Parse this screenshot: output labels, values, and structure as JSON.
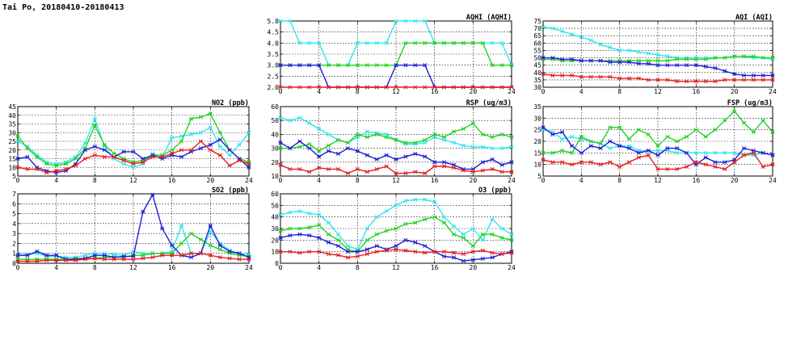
{
  "page_title": "Tai Po, 20180410-20180413",
  "colors": {
    "cyan": "#30e6f0",
    "green": "#22d222",
    "blue": "#1e1ed8",
    "red": "#e41e1e"
  },
  "chart_data": [
    {
      "id": "aqhi",
      "type": "line",
      "title": "AQHI (AQHI)",
      "xlabel": "",
      "ylabel": "",
      "xlim": [
        0,
        24
      ],
      "ylim": [
        2.0,
        5.0
      ],
      "xticks": [
        0,
        4,
        8,
        12,
        16,
        20,
        24
      ],
      "yticks": [
        2.0,
        2.5,
        3.0,
        3.5,
        4.0,
        4.5,
        5.0
      ],
      "grid": true,
      "x": [
        0,
        1,
        2,
        3,
        4,
        5,
        6,
        7,
        8,
        9,
        10,
        11,
        12,
        13,
        14,
        15,
        16,
        17,
        18,
        19,
        20,
        21,
        22,
        23,
        24
      ],
      "series": [
        {
          "color": "cyan",
          "values": [
            5,
            5,
            4,
            4,
            4,
            3,
            3,
            3,
            4,
            4,
            4,
            4,
            5,
            5,
            5,
            5,
            4,
            4,
            4,
            4,
            4,
            4,
            4,
            4,
            3
          ]
        },
        {
          "color": "green",
          "values": [
            3,
            3,
            3,
            3,
            3,
            3,
            3,
            3,
            3,
            3,
            3,
            3,
            3,
            4,
            4,
            4,
            4,
            4,
            4,
            4,
            4,
            4,
            3,
            3,
            3
          ]
        },
        {
          "color": "blue",
          "values": [
            3,
            3,
            3,
            3,
            3,
            2,
            2,
            2,
            2,
            2,
            2,
            2,
            3,
            3,
            3,
            3,
            2,
            2,
            2,
            2,
            2,
            2,
            2,
            2,
            2
          ]
        },
        {
          "color": "red",
          "values": [
            2,
            2,
            2,
            2,
            2,
            2,
            2,
            2,
            2,
            2,
            2,
            2,
            2,
            2,
            2,
            2,
            2,
            2,
            2,
            2,
            2,
            2,
            2,
            2,
            2
          ]
        }
      ]
    },
    {
      "id": "aqi",
      "type": "line",
      "title": "AQI (AQI)",
      "xlabel": "",
      "ylabel": "",
      "xlim": [
        0,
        24
      ],
      "ylim": [
        30,
        75
      ],
      "xticks": [
        0,
        4,
        8,
        12,
        16,
        20,
        24
      ],
      "yticks": [
        30,
        35,
        40,
        45,
        50,
        55,
        60,
        65,
        70,
        75
      ],
      "grid": true,
      "x": [
        0,
        1,
        2,
        3,
        4,
        5,
        6,
        7,
        8,
        9,
        10,
        11,
        12,
        13,
        14,
        15,
        16,
        17,
        18,
        19,
        20,
        21,
        22,
        23,
        24
      ],
      "series": [
        {
          "color": "cyan",
          "values": [
            71,
            70,
            68,
            66,
            64,
            62,
            59,
            57,
            55,
            55,
            54,
            53,
            52,
            51,
            50,
            50,
            50,
            50,
            50,
            50,
            51,
            51,
            50,
            50,
            49
          ]
        },
        {
          "color": "green",
          "values": [
            49,
            49,
            48,
            48,
            48,
            48,
            48,
            48,
            48,
            48,
            48,
            48,
            48,
            48,
            49,
            49,
            49,
            49,
            50,
            50,
            51,
            51,
            51,
            50,
            50
          ]
        },
        {
          "color": "blue",
          "values": [
            50,
            50,
            49,
            49,
            48,
            48,
            48,
            47,
            47,
            47,
            46,
            46,
            45,
            45,
            45,
            45,
            45,
            44,
            43,
            41,
            39,
            38,
            38,
            38,
            38
          ]
        },
        {
          "color": "red",
          "values": [
            39,
            38,
            38,
            38,
            37,
            37,
            37,
            37,
            36,
            36,
            36,
            35,
            35,
            35,
            34,
            34,
            34,
            34,
            34,
            35,
            35,
            35,
            35,
            35,
            35
          ]
        }
      ]
    },
    {
      "id": "no2",
      "type": "line",
      "title": "NO2 (ppb)",
      "xlabel": "",
      "ylabel": "",
      "xlim": [
        0,
        24
      ],
      "ylim": [
        5,
        45
      ],
      "xticks": [
        0,
        4,
        8,
        12,
        16,
        20,
        24
      ],
      "yticks": [
        5,
        10,
        15,
        20,
        25,
        30,
        35,
        40,
        45
      ],
      "grid": true,
      "x": [
        0,
        1,
        2,
        3,
        4,
        5,
        6,
        7,
        8,
        9,
        10,
        11,
        12,
        13,
        14,
        15,
        16,
        17,
        18,
        19,
        20,
        21,
        22,
        23,
        24
      ],
      "series": [
        {
          "color": "cyan",
          "values": [
            25,
            22,
            17,
            13,
            12,
            13,
            16,
            24,
            38,
            22,
            15,
            12,
            10,
            12,
            18,
            16,
            27,
            28,
            29,
            30,
            33,
            22,
            17,
            23,
            30
          ]
        },
        {
          "color": "green",
          "values": [
            28,
            21,
            16,
            12,
            11,
            12,
            15,
            21,
            34,
            23,
            18,
            15,
            13,
            14,
            17,
            17,
            20,
            25,
            38,
            39,
            41,
            30,
            20,
            15,
            13
          ]
        },
        {
          "color": "blue",
          "values": [
            15,
            16,
            10,
            8,
            7,
            8,
            12,
            20,
            22,
            20,
            16,
            19,
            19,
            15,
            17,
            15,
            17,
            16,
            19,
            21,
            23,
            26,
            20,
            15,
            10
          ]
        },
        {
          "color": "red",
          "values": [
            10,
            9,
            9,
            7,
            8,
            9,
            11,
            15,
            17,
            16,
            16,
            14,
            12,
            13,
            16,
            16,
            18,
            20,
            20,
            25,
            20,
            17,
            11,
            14,
            12
          ]
        }
      ]
    },
    {
      "id": "rsp",
      "type": "line",
      "title": "RSP (ug/m3)",
      "xlabel": "",
      "ylabel": "",
      "xlim": [
        0,
        24
      ],
      "ylim": [
        10,
        60
      ],
      "xticks": [
        0,
        4,
        8,
        12,
        16,
        20,
        24
      ],
      "yticks": [
        10,
        20,
        30,
        40,
        50,
        60
      ],
      "grid": true,
      "x": [
        0,
        1,
        2,
        3,
        4,
        5,
        6,
        7,
        8,
        9,
        10,
        11,
        12,
        13,
        14,
        15,
        16,
        17,
        18,
        19,
        20,
        21,
        22,
        23,
        24
      ],
      "series": [
        {
          "color": "cyan",
          "values": [
            52,
            50,
            52,
            48,
            44,
            40,
            36,
            34,
            38,
            42,
            41,
            40,
            36,
            33,
            33,
            34,
            38,
            36,
            34,
            32,
            31,
            31,
            30,
            30,
            31
          ]
        },
        {
          "color": "green",
          "values": [
            30,
            30,
            31,
            33,
            28,
            32,
            36,
            34,
            40,
            38,
            40,
            38,
            36,
            34,
            34,
            36,
            40,
            38,
            42,
            44,
            48,
            40,
            38,
            40,
            38
          ]
        },
        {
          "color": "blue",
          "values": [
            34,
            30,
            35,
            30,
            24,
            28,
            26,
            30,
            28,
            25,
            22,
            25,
            22,
            24,
            26,
            24,
            20,
            20,
            18,
            15,
            15,
            20,
            22,
            18,
            20
          ]
        },
        {
          "color": "red",
          "values": [
            18,
            15,
            15,
            13,
            16,
            15,
            15,
            12,
            15,
            13,
            15,
            17,
            12,
            12,
            13,
            12,
            17,
            17,
            16,
            14,
            13,
            14,
            15,
            13,
            13
          ]
        }
      ]
    },
    {
      "id": "fsp",
      "type": "line",
      "title": "FSP (ug/m3)",
      "xlabel": "",
      "ylabel": "",
      "xlim": [
        0,
        24
      ],
      "ylim": [
        5,
        35
      ],
      "xticks": [
        0,
        4,
        8,
        12,
        16,
        20,
        24
      ],
      "yticks": [
        5,
        10,
        15,
        20,
        25,
        30,
        35
      ],
      "grid": true,
      "x": [
        0,
        1,
        2,
        3,
        4,
        5,
        6,
        7,
        8,
        9,
        10,
        11,
        12,
        13,
        14,
        15,
        16,
        17,
        18,
        19,
        20,
        21,
        22,
        23,
        24
      ],
      "series": [
        {
          "color": "cyan",
          "values": [
            25,
            24,
            21,
            22,
            21,
            20,
            19,
            17,
            18,
            18,
            16,
            16,
            16,
            16,
            15,
            15,
            15,
            15,
            15,
            15,
            15,
            14,
            14,
            15,
            14
          ]
        },
        {
          "color": "green",
          "values": [
            15,
            15,
            16,
            15,
            22,
            20,
            19,
            26,
            26,
            21,
            25,
            23,
            18,
            22,
            20,
            22,
            25,
            22,
            25,
            29,
            33,
            28,
            24,
            29,
            24
          ]
        },
        {
          "color": "blue",
          "values": [
            26,
            23,
            24,
            18,
            15,
            18,
            17,
            20,
            18,
            17,
            15,
            16,
            14,
            17,
            17,
            15,
            10,
            13,
            11,
            11,
            12,
            17,
            16,
            15,
            14
          ]
        },
        {
          "color": "red",
          "values": [
            12,
            11,
            11,
            10,
            11,
            11,
            10,
            11,
            9,
            11,
            13,
            14,
            8,
            8,
            8,
            9,
            11,
            10,
            9,
            8,
            11,
            14,
            15,
            9,
            10
          ]
        }
      ]
    },
    {
      "id": "so2",
      "type": "line",
      "title": "SO2 (ppb)",
      "xlabel": "",
      "ylabel": "",
      "xlim": [
        0,
        24
      ],
      "ylim": [
        0,
        7
      ],
      "xticks": [
        0,
        4,
        8,
        12,
        16,
        20,
        24
      ],
      "yticks": [
        0,
        1,
        2,
        3,
        4,
        5,
        6,
        7
      ],
      "grid": true,
      "x": [
        0,
        1,
        2,
        3,
        4,
        5,
        6,
        7,
        8,
        9,
        10,
        11,
        12,
        13,
        14,
        15,
        16,
        17,
        18,
        19,
        20,
        21,
        22,
        23,
        24
      ],
      "series": [
        {
          "color": "cyan",
          "values": [
            0.8,
            0.9,
            1.0,
            0.7,
            0.7,
            0.6,
            0.6,
            0.8,
            1.0,
            1.0,
            0.9,
            0.8,
            1.2,
            1.0,
            1.0,
            1.0,
            1.2,
            3.8,
            1.0,
            1.0,
            3.2,
            2.0,
            1.3,
            1.0,
            0.9
          ]
        },
        {
          "color": "green",
          "values": [
            0.4,
            0.4,
            0.4,
            0.4,
            0.4,
            0.4,
            0.5,
            0.5,
            0.5,
            0.6,
            0.6,
            0.6,
            0.8,
            0.8,
            1.0,
            1.0,
            1.0,
            2.0,
            3.0,
            2.4,
            1.8,
            1.4,
            1.0,
            0.8,
            0.7
          ]
        },
        {
          "color": "blue",
          "values": [
            0.8,
            0.8,
            1.2,
            0.8,
            0.8,
            0.4,
            0.4,
            0.5,
            0.8,
            0.8,
            0.6,
            0.7,
            0.7,
            5.2,
            6.9,
            3.5,
            1.8,
            0.8,
            0.6,
            1.0,
            3.8,
            1.8,
            1.2,
            1.0,
            0.6
          ]
        },
        {
          "color": "red",
          "values": [
            0.2,
            0.2,
            0.2,
            0.3,
            0.3,
            0.3,
            0.3,
            0.4,
            0.5,
            0.4,
            0.4,
            0.4,
            0.4,
            0.5,
            0.6,
            0.8,
            0.8,
            0.8,
            1.0,
            1.0,
            0.8,
            0.6,
            0.5,
            0.4,
            0.4
          ]
        }
      ]
    },
    {
      "id": "o3",
      "type": "line",
      "title": "O3 (ppb)",
      "xlabel": "",
      "ylabel": "",
      "xlim": [
        0,
        24
      ],
      "ylim": [
        0,
        60
      ],
      "xticks": [
        0,
        4,
        8,
        12,
        16,
        20,
        24
      ],
      "yticks": [
        0,
        10,
        20,
        30,
        40,
        50,
        60
      ],
      "grid": true,
      "x": [
        0,
        1,
        2,
        3,
        4,
        5,
        6,
        7,
        8,
        9,
        10,
        11,
        12,
        13,
        14,
        15,
        16,
        17,
        18,
        19,
        20,
        21,
        22,
        23,
        24
      ],
      "series": [
        {
          "color": "cyan",
          "values": [
            42,
            44,
            45,
            43,
            42,
            35,
            25,
            15,
            12,
            30,
            40,
            45,
            50,
            54,
            55,
            55,
            53,
            40,
            32,
            25,
            30,
            20,
            38,
            30,
            25
          ]
        },
        {
          "color": "green",
          "values": [
            28,
            30,
            30,
            31,
            33,
            25,
            20,
            12,
            10,
            20,
            25,
            28,
            30,
            34,
            35,
            38,
            40,
            35,
            25,
            22,
            15,
            25,
            25,
            22,
            20
          ]
        },
        {
          "color": "blue",
          "values": [
            22,
            24,
            25,
            24,
            22,
            18,
            15,
            10,
            10,
            12,
            15,
            12,
            15,
            20,
            18,
            15,
            10,
            6,
            5,
            2,
            3,
            4,
            5,
            8,
            10
          ]
        },
        {
          "color": "red",
          "values": [
            10,
            10,
            9,
            10,
            10,
            8,
            7,
            5,
            6,
            8,
            10,
            11,
            12,
            11,
            10,
            9,
            10,
            10,
            9,
            8,
            10,
            11,
            9,
            8,
            9
          ]
        }
      ]
    }
  ]
}
